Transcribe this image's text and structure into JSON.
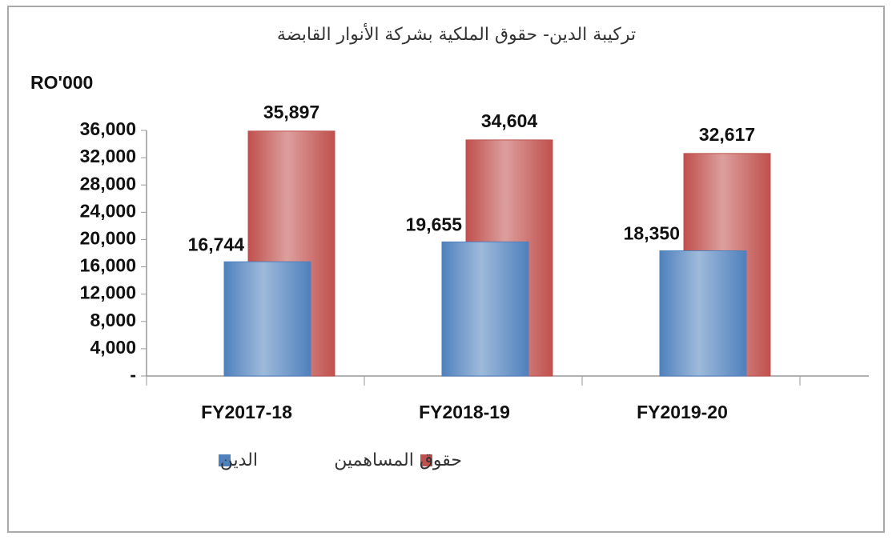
{
  "chart_data": {
    "type": "bar",
    "title": "تركيبة الدين- حقوق الملكية بشركة الأنوار القابضة",
    "y_label": "RO'000",
    "categories": [
      "FY2017-18",
      "FY2018-19",
      "FY2019-20"
    ],
    "series": [
      {
        "name": "الدين",
        "color": "#4f81bd",
        "values": [
          16744,
          19655,
          18350
        ],
        "value_labels": [
          "16,744",
          "19,655",
          "18,350"
        ]
      },
      {
        "name": "حقوق المساهمين",
        "color": "#c0504d",
        "values": [
          35897,
          34604,
          32617
        ],
        "value_labels": [
          "35,897",
          "34,604",
          "32,617"
        ]
      }
    ],
    "ylim": [
      0,
      36000
    ],
    "yticks": [
      {
        "value": 0,
        "label": "-"
      },
      {
        "value": 4000,
        "label": "4,000"
      },
      {
        "value": 8000,
        "label": "8,000"
      },
      {
        "value": 12000,
        "label": "12,000"
      },
      {
        "value": 16000,
        "label": "16,000"
      },
      {
        "value": 20000,
        "label": "20,000"
      },
      {
        "value": 24000,
        "label": "24,000"
      },
      {
        "value": 28000,
        "label": "28,000"
      },
      {
        "value": 32000,
        "label": "32,000"
      },
      {
        "value": 36000,
        "label": "36,000"
      }
    ],
    "grid": false
  }
}
